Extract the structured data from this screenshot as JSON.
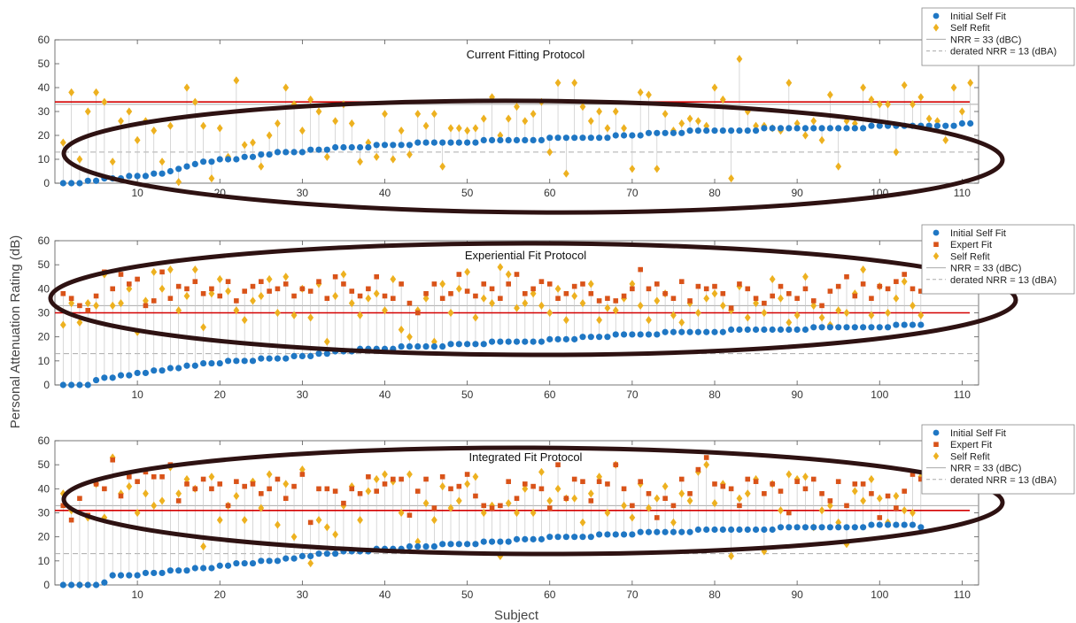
{
  "colors": {
    "initial": "#1f77c4",
    "expert": "#d95319",
    "refit": "#edb120",
    "nrr": "#aaaaaa",
    "derated": "#aaaaaa",
    "redline": "#d40000",
    "ellipse": "#2e1212"
  },
  "chart_data": {
    "type": "scatter",
    "shared_xlabel": "Subject",
    "shared_ylabel": "Personal Attenuation Rating (dB)",
    "panels": [
      {
        "title": "Current Fitting Protocol",
        "xlim": [
          0,
          112
        ],
        "ylim": [
          0,
          60
        ],
        "xticks": [
          "10",
          "20",
          "30",
          "40",
          "50",
          "60",
          "70",
          "80",
          "90",
          "100",
          "110"
        ],
        "yticks": [
          "0",
          "10",
          "20",
          "30",
          "40",
          "50",
          "60"
        ],
        "nrr": 33,
        "derated": 13,
        "red_line": 34,
        "n": 111,
        "legend": [
          "Initial Self Fit",
          "Self Refit",
          "NRR = 33 (dBC)",
          "derated NRR = 13 (dBA)"
        ],
        "series": [
          {
            "name": "Initial Self Fit",
            "marker": "circle",
            "values": [
              0,
              0,
              0,
              1,
              1,
              2,
              2,
              2,
              3,
              3,
              3,
              4,
              4,
              5,
              6,
              7,
              8,
              9,
              9,
              10,
              10,
              10,
              11,
              11,
              12,
              12,
              13,
              13,
              13,
              13,
              14,
              14,
              14,
              15,
              15,
              15,
              15,
              15,
              16,
              16,
              16,
              16,
              16,
              17,
              17,
              17,
              17,
              17,
              17,
              17,
              17,
              18,
              18,
              18,
              18,
              18,
              18,
              18,
              18,
              19,
              19,
              19,
              19,
              19,
              19,
              19,
              19,
              20,
              20,
              20,
              20,
              21,
              21,
              21,
              21,
              21,
              22,
              22,
              22,
              22,
              22,
              22,
              22,
              22,
              22,
              23,
              23,
              23,
              23,
              23,
              23,
              23,
              23,
              23,
              23,
              23,
              23,
              23,
              24,
              24,
              24,
              24,
              24,
              24,
              24,
              24,
              24,
              24,
              24,
              25,
              25
            ]
          },
          {
            "name": "Self Refit",
            "marker": "diamond",
            "values": [
              17,
              38,
              10,
              30,
              38,
              34,
              9,
              26,
              30,
              18,
              26,
              22,
              9,
              24,
              0.5,
              40,
              34,
              24,
              2,
              23,
              11,
              43,
              16,
              17,
              7,
              20,
              25,
              40,
              33,
              22,
              35,
              30,
              11,
              26,
              33,
              25,
              9,
              17,
              11,
              29,
              10,
              22,
              12,
              29,
              24,
              29,
              7,
              23,
              23,
              22,
              23,
              27,
              36,
              20,
              27,
              32,
              26,
              29,
              34,
              13,
              42,
              4,
              42,
              32,
              26,
              30,
              23,
              30,
              23,
              6,
              38,
              37,
              6,
              29,
              22,
              25,
              27,
              26,
              24,
              40,
              35,
              2,
              52,
              30,
              24,
              24,
              23,
              22,
              42,
              25,
              20,
              26,
              18,
              37,
              7,
              26,
              25,
              40,
              35,
              33,
              33,
              13,
              41,
              33,
              36,
              27,
              26,
              18,
              40,
              30,
              42
            ]
          }
        ]
      },
      {
        "title": "Experiential Fit Protocol",
        "xlim": [
          0,
          112
        ],
        "ylim": [
          0,
          60
        ],
        "xticks": [
          "10",
          "20",
          "30",
          "40",
          "50",
          "60",
          "70",
          "80",
          "90",
          "100",
          "110"
        ],
        "yticks": [
          "0",
          "10",
          "20",
          "30",
          "40",
          "50",
          "60"
        ],
        "nrr": 33,
        "derated": 13,
        "red_line": 30,
        "n": 105,
        "legend": [
          "Initial Self Fit",
          "Expert Fit",
          "Self Refit",
          "NRR = 33 (dBC)",
          "derated NRR = 13 (dBA)"
        ],
        "series": [
          {
            "name": "Initial Self Fit",
            "marker": "circle",
            "values": [
              0,
              0,
              0,
              0,
              2,
              3,
              3,
              4,
              4,
              5,
              5,
              6,
              6,
              7,
              7,
              8,
              8,
              9,
              9,
              9,
              10,
              10,
              10,
              10,
              11,
              11,
              11,
              11,
              12,
              12,
              12,
              13,
              13,
              14,
              14,
              14,
              15,
              15,
              15,
              15,
              15,
              16,
              16,
              16,
              16,
              16,
              16,
              17,
              17,
              17,
              17,
              17,
              18,
              18,
              18,
              18,
              18,
              18,
              18,
              19,
              19,
              19,
              19,
              20,
              20,
              20,
              20,
              21,
              21,
              21,
              21,
              21,
              21,
              22,
              22,
              22,
              22,
              22,
              22,
              22,
              22,
              23,
              23,
              23,
              23,
              23,
              23,
              23,
              23,
              23,
              23,
              24,
              24,
              24,
              24,
              24,
              24,
              24,
              24,
              24,
              24,
              25,
              25,
              25,
              25
            ]
          },
          {
            "name": "Expert Fit",
            "marker": "square",
            "values": [
              38,
              36,
              33,
              31,
              37,
              47,
              40,
              46,
              42,
              44,
              33,
              35,
              47,
              36,
              41,
              40,
              43,
              38,
              40,
              37,
              43,
              35,
              39,
              41,
              43,
              39,
              40,
              42,
              37,
              40,
              39,
              43,
              36,
              45,
              42,
              39,
              37,
              40,
              45,
              37,
              36,
              42,
              34,
              30,
              38,
              42,
              36,
              38,
              46,
              39,
              37,
              42,
              40,
              36,
              42,
              46,
              38,
              40,
              43,
              42,
              36,
              38,
              41,
              42,
              38,
              35,
              36,
              35,
              37,
              40,
              48,
              40,
              42,
              38,
              36,
              43,
              35,
              41,
              40,
              41,
              38,
              32,
              42,
              40,
              36,
              34,
              37,
              41,
              38,
              36,
              40,
              35,
              33,
              39,
              41,
              45,
              37,
              42,
              36,
              41,
              40,
              43,
              46,
              40,
              39
            ]
          },
          {
            "name": "Self Refit",
            "marker": "diamond",
            "values": [
              25,
              34,
              26,
              34,
              33,
              46,
              33,
              34,
              40,
              22,
              35,
              47,
              40,
              48,
              31,
              37,
              48,
              24,
              38,
              44,
              39,
              31,
              27,
              35,
              37,
              44,
              30,
              45,
              29,
              40,
              28,
              42,
              18,
              37,
              46,
              34,
              29,
              36,
              38,
              31,
              44,
              23,
              20,
              31,
              36,
              18,
              42,
              30,
              40,
              47,
              28,
              36,
              34,
              49,
              46,
              32,
              34,
              38,
              33,
              30,
              40,
              27,
              37,
              34,
              42,
              27,
              32,
              31,
              36,
              42,
              33,
              27,
              35,
              38,
              29,
              26,
              34,
              30,
              36,
              38,
              33,
              31,
              41,
              28,
              34,
              30,
              44,
              36,
              26,
              29,
              45,
              33,
              28,
              25,
              31,
              30,
              38,
              48,
              29,
              41,
              30,
              36,
              43,
              33,
              29
            ]
          }
        ]
      },
      {
        "title": "Integrated Fit Protocol",
        "xlim": [
          0,
          112
        ],
        "ylim": [
          0,
          60
        ],
        "xticks": [
          "10",
          "20",
          "30",
          "40",
          "50",
          "60",
          "70",
          "80",
          "90",
          "100",
          "110"
        ],
        "yticks": [
          "0",
          "10",
          "20",
          "30",
          "40",
          "50",
          "60"
        ],
        "nrr": 33,
        "derated": 13,
        "red_line": 31,
        "n": 105,
        "legend": [
          "Initial Self Fit",
          "Expert Fit",
          "Self Refit",
          "NRR = 33 (dBC)",
          "derated NRR = 13 (dBA)"
        ],
        "series": [
          {
            "name": "Initial Self Fit",
            "marker": "circle",
            "values": [
              0,
              0,
              0,
              0,
              0,
              1,
              4,
              4,
              4,
              4,
              5,
              5,
              5,
              6,
              6,
              6,
              7,
              7,
              7,
              8,
              8,
              9,
              9,
              9,
              10,
              10,
              10,
              11,
              11,
              12,
              12,
              13,
              13,
              13,
              14,
              14,
              14,
              14,
              15,
              15,
              15,
              15,
              16,
              16,
              16,
              16,
              17,
              17,
              17,
              17,
              17,
              18,
              18,
              18,
              18,
              19,
              19,
              19,
              19,
              20,
              20,
              20,
              20,
              20,
              20,
              21,
              21,
              21,
              21,
              21,
              22,
              22,
              22,
              22,
              22,
              22,
              22,
              23,
              23,
              23,
              23,
              23,
              23,
              23,
              23,
              23,
              23,
              24,
              24,
              24,
              24,
              24,
              24,
              24,
              24,
              24,
              24,
              24,
              25,
              25,
              25,
              25,
              25,
              25,
              24
            ]
          },
          {
            "name": "Expert Fit",
            "marker": "square",
            "values": [
              33,
              27,
              36,
              29,
              42,
              40,
              52,
              37,
              45,
              43,
              47,
              45,
              45,
              50,
              35,
              42,
              40,
              44,
              40,
              42,
              33,
              43,
              41,
              42,
              38,
              40,
              44,
              36,
              41,
              46,
              26,
              40,
              40,
              39,
              34,
              40,
              38,
              45,
              39,
              42,
              44,
              44,
              29,
              39,
              44,
              32,
              45,
              40,
              41,
              46,
              37,
              33,
              32,
              33,
              43,
              36,
              42,
              41,
              40,
              32,
              50,
              36,
              44,
              43,
              35,
              43,
              42,
              50,
              40,
              33,
              43,
              38,
              28,
              36,
              33,
              44,
              38,
              48,
              53,
              42,
              41,
              40,
              33,
              44,
              43,
              38,
              42,
              39,
              30,
              43,
              40,
              44,
              38,
              35,
              43,
              33,
              42,
              42,
              38,
              28,
              37,
              32,
              39,
              46,
              44
            ]
          },
          {
            "name": "Self Refit",
            "marker": "diamond",
            "values": [
              38,
              31,
              0,
              28,
              42,
              28,
              53,
              38,
              41,
              30,
              38,
              33,
              35,
              49,
              38,
              44,
              40,
              16,
              45,
              27,
              33,
              37,
              27,
              43,
              32,
              46,
              25,
              42,
              20,
              48,
              9,
              27,
              24,
              21,
              33,
              41,
              27,
              39,
              44,
              46,
              43,
              30,
              46,
              18,
              34,
              27,
              41,
              32,
              35,
              42,
              45,
              30,
              33,
              12,
              34,
              30,
              40,
              30,
              47,
              35,
              40,
              36,
              36,
              26,
              38,
              45,
              30,
              50,
              33,
              28,
              42,
              32,
              36,
              41,
              26,
              38,
              35,
              47,
              50,
              34,
              42,
              12,
              36,
              38,
              44,
              14,
              42,
              31,
              46,
              44,
              45,
              24,
              31,
              33,
              26,
              17,
              39,
              35,
              44,
              36,
              26,
              37,
              31,
              30,
              45
            ]
          }
        ]
      }
    ]
  }
}
